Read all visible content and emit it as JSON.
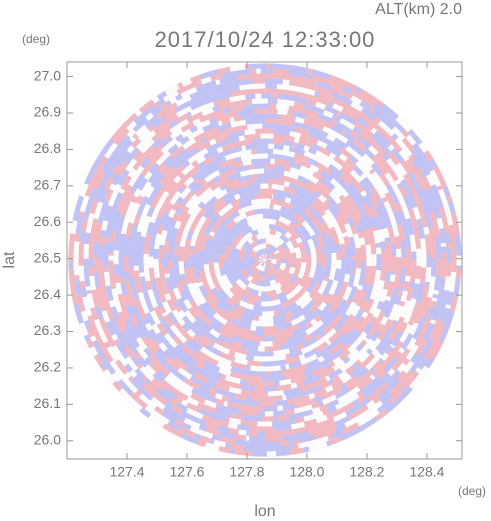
{
  "chart_data": {
    "type": "radar-ppi",
    "title": "2017/10/24 12:33:00",
    "subtitle": "ALT(km) 2.0",
    "x_label": "lon",
    "y_label": "lat",
    "x_unit": "(deg)",
    "y_unit": "(deg)",
    "xlim": [
      127.2,
      128.517
    ],
    "ylim": [
      25.95,
      27.04
    ],
    "xticks": [
      127.4,
      127.6,
      127.8,
      {
        "value": 128.0,
        "label": "128.0"
      },
      128.2,
      128.4
    ],
    "yticks": [
      {
        "value": 26.0,
        "label": "26.0"
      },
      26.1,
      26.2,
      26.3,
      26.4,
      26.5,
      26.6,
      26.7,
      26.8,
      26.9,
      {
        "value": 27.0,
        "label": "27.0"
      }
    ]
  }
}
